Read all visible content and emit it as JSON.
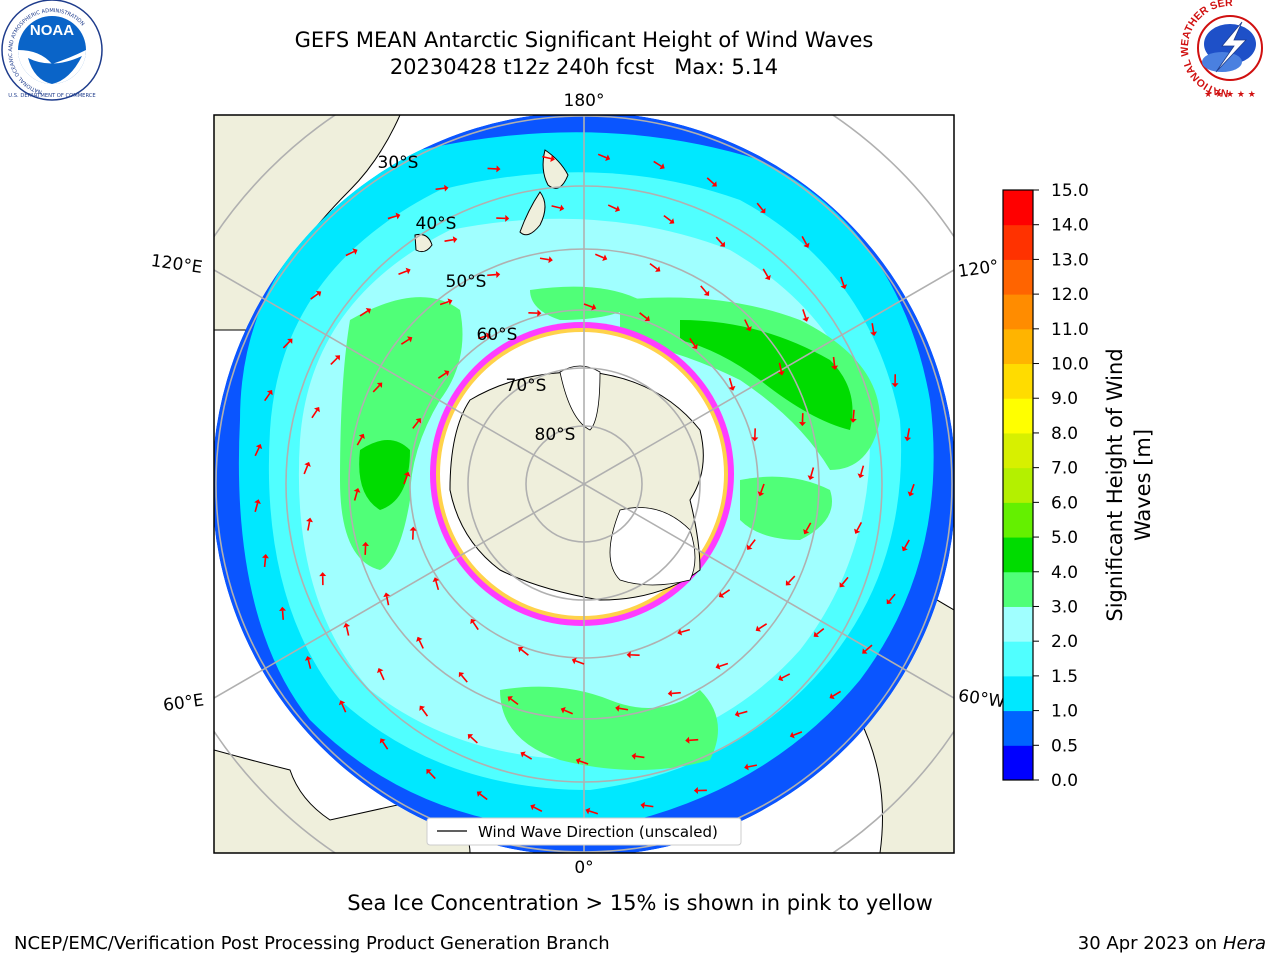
{
  "title_line1": "GEFS MEAN Antarctic Significant Height of Wind Waves",
  "title_line2": "20230428 t12z 240h fcst   Max: 5.14",
  "map": {
    "lon_labels": {
      "top": "180°",
      "bottom": "0°",
      "upper_left": "120°E",
      "upper_right": "120°",
      "lower_left": "60°E",
      "lower_right": "60°W"
    },
    "lat_labels": [
      "30°S",
      "40°S",
      "50°S",
      "60°S",
      "70°S",
      "80°S"
    ],
    "legend": "Wind Wave Direction (unscaled)"
  },
  "colorbar": {
    "label": "Significant Height of Wind Waves [m]",
    "label_line1": "Significant Height of Wind",
    "label_line2": "Waves [m]",
    "ticks": [
      "0.0",
      "0.5",
      "1.0",
      "1.5",
      "2.0",
      "3.0",
      "4.0",
      "5.0",
      "6.0",
      "7.0",
      "8.0",
      "9.0",
      "10.0",
      "11.0",
      "12.0",
      "13.0",
      "14.0",
      "15.0"
    ],
    "colors": [
      "#0000ff",
      "#0064ff",
      "#00e8ff",
      "#50ffff",
      "#a0ffff",
      "#50ff78",
      "#00dc00",
      "#64f000",
      "#b4f000",
      "#d7f000",
      "#ffff00",
      "#ffdc00",
      "#ffb400",
      "#ff8c00",
      "#ff6400",
      "#ff3200",
      "#ff0000"
    ]
  },
  "colors": {
    "ocean_low": "#0a55ff",
    "land": "#efefdc",
    "arrow": "#ff0000",
    "ice_low": "#ff3cff",
    "grid": "#b0b0b0"
  },
  "footer": {
    "ice_note": "Sea Ice Concentration > 15% is shown in pink to yellow",
    "credit": "NCEP/EMC/Verification Post Processing Product Generation Branch",
    "date": "30 Apr 2023 on",
    "host": "Hera"
  },
  "logos": {
    "left": "NOAA",
    "left_ring": "NATIONAL OCEANIC AND ATMOSPHERIC ADMINISTRATION",
    "left_bottom": "U.S. DEPARTMENT OF COMMERCE",
    "right_ring": "NATIONAL WEATHER SERVICE"
  }
}
